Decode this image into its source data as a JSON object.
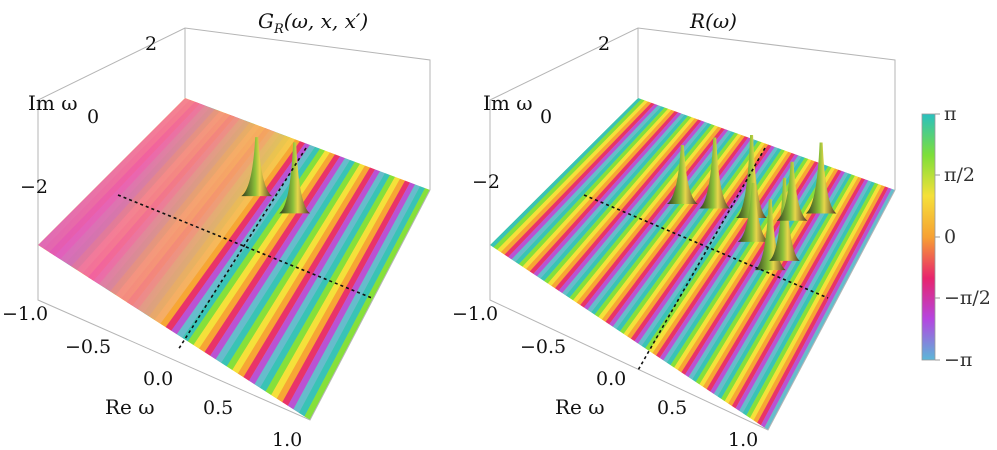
{
  "chart_data": [
    {
      "type": "surface",
      "title": "G_R(ω, x, x′)",
      "title_parts": {
        "sym": "G",
        "sub": "R",
        "args": "(ω, x, x′)"
      },
      "xlabel": "Re ω",
      "ylabel": "Im ω",
      "x_ticks": [
        "−1.0",
        "−0.5",
        "0.0",
        "0.5",
        "1.0"
      ],
      "x_range": [
        -1.0,
        1.0
      ],
      "y_ticks": [
        "2",
        "0",
        "−2"
      ],
      "y_range": [
        -3.5,
        3.5
      ],
      "color_function": "phase (argument)",
      "dashed_lines": [
        "Re ω = 0",
        "Im ω = 0"
      ],
      "peaks": [
        {
          "re": -0.1,
          "im": -1.5
        },
        {
          "re": 0.2,
          "im": -1.5
        }
      ]
    },
    {
      "type": "surface",
      "title": "R(ω)",
      "title_parts": {
        "sym": "R",
        "sub": "",
        "args": "(ω)"
      },
      "xlabel": "Re ω",
      "ylabel": "Im ω",
      "x_ticks": [
        "−1.0",
        "−0.5",
        "0.0",
        "0.5",
        "1.0"
      ],
      "x_range": [
        -1.0,
        1.0
      ],
      "y_ticks": [
        "2",
        "0",
        "−2"
      ],
      "y_range": [
        -3.5,
        3.5
      ],
      "color_function": "phase (argument)",
      "dashed_lines": [
        "Re ω = 0",
        "Im ω = 0"
      ],
      "peaks": [
        {
          "re": -0.25,
          "im": -0.9
        },
        {
          "re": -0.05,
          "im": -1.2
        },
        {
          "re": 0.2,
          "im": -1.4
        },
        {
          "re": 0.3,
          "im": -0.8
        },
        {
          "re": 0.5,
          "im": -0.3
        },
        {
          "re": 0.55,
          "im": -0.7
        },
        {
          "re": 0.45,
          "im": -1.8
        },
        {
          "re": 0.6,
          "im": -2.3
        }
      ]
    }
  ],
  "colorbar": {
    "labels": [
      "π",
      "π/2",
      "0",
      "−π/2",
      "−π"
    ],
    "values": [
      3.1416,
      1.5708,
      0,
      -1.5708,
      -3.1416
    ],
    "colors": [
      "#29c0c0",
      "#7ddf3a",
      "#f5e03a",
      "#f7a133",
      "#e8246d",
      "#b545e0",
      "#5ab8d8"
    ]
  }
}
